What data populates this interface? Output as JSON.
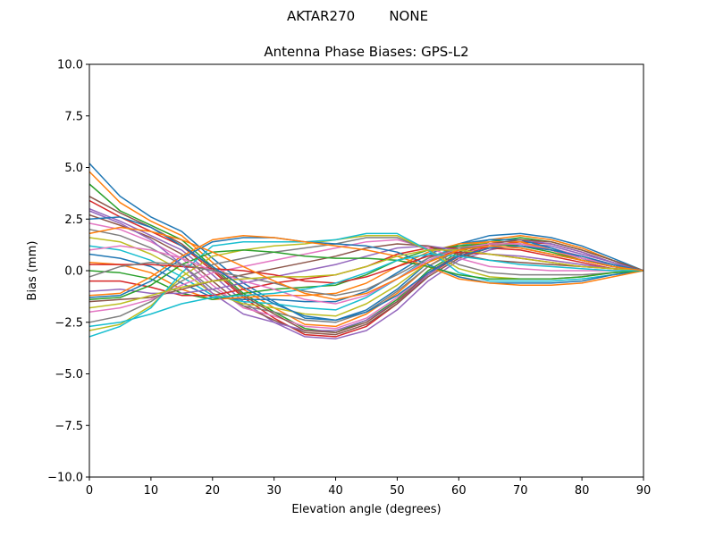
{
  "header": {
    "suptitle": "AKTAR270        NONE"
  },
  "chart_data": {
    "type": "line",
    "title": "Antenna Phase Biases: GPS-L2",
    "xlabel": "Elevation angle (degrees)",
    "ylabel": "Bias (mm)",
    "xlim": [
      0,
      90
    ],
    "ylim": [
      -10,
      10
    ],
    "xticks": [
      0,
      10,
      20,
      30,
      40,
      50,
      60,
      70,
      80,
      90
    ],
    "xtick_labels": [
      "0",
      "10",
      "20",
      "30",
      "40",
      "50",
      "60",
      "70",
      "80",
      "90"
    ],
    "yticks": [
      -10,
      -7.5,
      -5,
      -2.5,
      0,
      2.5,
      5,
      7.5,
      10
    ],
    "ytick_labels": [
      "−10.0",
      "−7.5",
      "−5.0",
      "−2.5",
      "0.0",
      "2.5",
      "5.0",
      "7.5",
      "10.0"
    ],
    "grid": false,
    "legend": "none",
    "colors": [
      "#1f77b4",
      "#ff7f0e",
      "#2ca02c",
      "#d62728",
      "#9467bd",
      "#8c564b",
      "#e377c2",
      "#7f7f7f",
      "#bcbd22",
      "#17becf"
    ],
    "x": [
      0,
      5,
      10,
      15,
      20,
      25,
      30,
      35,
      40,
      45,
      50,
      55,
      60,
      65,
      70,
      75,
      80,
      85,
      90
    ],
    "series": [
      {
        "values": [
          5.2,
          3.6,
          2.6,
          1.9,
          0.6,
          -0.6,
          -1.5,
          -2.3,
          -2.4,
          -1.9,
          -0.9,
          0.4,
          1.3,
          1.7,
          1.8,
          1.6,
          1.2,
          0.6,
          0.0
        ]
      },
      {
        "values": [
          4.8,
          3.3,
          2.4,
          1.7,
          0.4,
          -0.9,
          -1.8,
          -2.6,
          -2.7,
          -2.1,
          -1.1,
          0.2,
          1.1,
          1.5,
          1.7,
          1.5,
          1.1,
          0.5,
          0.0
        ]
      },
      {
        "values": [
          4.2,
          2.9,
          2.2,
          1.5,
          0.2,
          -1.1,
          -2.0,
          -2.8,
          -3.0,
          -2.4,
          -1.4,
          0.0,
          0.9,
          1.4,
          1.6,
          1.4,
          1.0,
          0.5,
          0.0
        ]
      },
      {
        "values": [
          3.4,
          2.6,
          1.9,
          1.2,
          0.0,
          -1.3,
          -2.3,
          -3.1,
          -3.2,
          -2.7,
          -1.6,
          -0.2,
          0.7,
          1.2,
          1.4,
          1.3,
          0.9,
          0.4,
          0.0
        ]
      },
      {
        "values": [
          3.0,
          2.4,
          1.7,
          1.0,
          -0.2,
          -1.5,
          -2.5,
          -3.2,
          -3.3,
          -2.9,
          -1.9,
          -0.5,
          0.5,
          1.0,
          1.3,
          1.2,
          0.8,
          0.4,
          0.0
        ]
      },
      {
        "values": [
          2.7,
          2.2,
          1.6,
          0.8,
          -0.5,
          -1.7,
          -2.4,
          -3.0,
          -3.1,
          -2.6,
          -1.6,
          -0.3,
          0.6,
          1.1,
          1.2,
          1.0,
          0.7,
          0.3,
          0.0
        ]
      },
      {
        "values": [
          2.3,
          2.0,
          1.4,
          0.6,
          -0.7,
          -1.8,
          -2.2,
          -2.7,
          -2.8,
          -2.3,
          -1.3,
          -0.1,
          0.8,
          1.2,
          1.3,
          1.1,
          0.7,
          0.3,
          0.0
        ]
      },
      {
        "values": [
          2.0,
          1.7,
          1.1,
          0.3,
          -0.9,
          -1.7,
          -2.0,
          -2.4,
          -2.5,
          -2.0,
          -1.0,
          0.2,
          1.0,
          1.3,
          1.3,
          1.0,
          0.6,
          0.3,
          0.0
        ]
      },
      {
        "values": [
          1.6,
          1.4,
          0.8,
          0.0,
          -1.1,
          -1.6,
          -1.8,
          -2.1,
          -2.2,
          -1.6,
          -0.7,
          0.4,
          1.1,
          1.4,
          1.4,
          1.0,
          0.6,
          0.2,
          0.0
        ]
      },
      {
        "values": [
          1.2,
          1.0,
          0.5,
          -0.3,
          -1.2,
          -1.5,
          -1.6,
          -1.8,
          -1.9,
          -1.3,
          -0.4,
          0.6,
          1.2,
          1.5,
          1.5,
          1.1,
          0.6,
          0.2,
          0.0
        ]
      },
      {
        "values": [
          0.8,
          0.6,
          0.2,
          -0.6,
          -1.3,
          -1.4,
          -1.4,
          -1.5,
          -1.5,
          -1.0,
          -0.1,
          0.8,
          1.3,
          1.5,
          1.5,
          1.1,
          0.6,
          0.2,
          0.0
        ]
      },
      {
        "values": [
          0.4,
          0.3,
          -0.1,
          -0.9,
          -1.4,
          -1.3,
          -1.2,
          -1.2,
          -1.1,
          -0.6,
          0.2,
          0.9,
          1.3,
          1.4,
          1.4,
          1.0,
          0.5,
          0.2,
          0.0
        ]
      },
      {
        "values": [
          0.0,
          -0.1,
          -0.4,
          -1.1,
          -1.4,
          -1.1,
          -0.9,
          -0.8,
          -0.7,
          -0.2,
          0.5,
          1.0,
          1.2,
          1.3,
          1.2,
          0.9,
          0.5,
          0.2,
          0.0
        ]
      },
      {
        "values": [
          -0.5,
          -0.5,
          -0.8,
          -1.2,
          -1.2,
          -0.9,
          -0.6,
          -0.4,
          -0.2,
          0.2,
          0.8,
          1.1,
          1.1,
          1.1,
          1.0,
          0.7,
          0.4,
          0.1,
          0.0
        ]
      },
      {
        "values": [
          -1.0,
          -0.9,
          -1.1,
          -1.1,
          -0.9,
          -0.6,
          -0.3,
          0.0,
          0.3,
          0.7,
          1.1,
          1.2,
          1.0,
          0.8,
          0.7,
          0.5,
          0.3,
          0.1,
          0.0
        ]
      },
      {
        "values": [
          -1.5,
          -1.4,
          -1.3,
          -0.9,
          -0.5,
          -0.2,
          0.1,
          0.4,
          0.7,
          1.1,
          1.3,
          1.2,
          0.8,
          0.5,
          0.4,
          0.3,
          0.2,
          0.1,
          0.0
        ]
      },
      {
        "values": [
          -2.0,
          -1.8,
          -1.4,
          -0.7,
          -0.1,
          0.2,
          0.5,
          0.8,
          1.1,
          1.4,
          1.5,
          1.1,
          0.6,
          0.2,
          0.1,
          0.0,
          0.0,
          0.0,
          0.0
        ]
      },
      {
        "values": [
          -2.5,
          -2.2,
          -1.5,
          -0.5,
          0.3,
          0.6,
          0.9,
          1.1,
          1.3,
          1.6,
          1.6,
          1.0,
          0.3,
          -0.1,
          -0.2,
          -0.2,
          -0.2,
          -0.1,
          0.0
        ]
      },
      {
        "values": [
          -2.9,
          -2.6,
          -1.7,
          -0.3,
          0.7,
          1.0,
          1.2,
          1.3,
          1.5,
          1.7,
          1.7,
          1.0,
          0.1,
          -0.3,
          -0.4,
          -0.4,
          -0.3,
          -0.1,
          0.0
        ]
      },
      {
        "values": [
          -3.2,
          -2.7,
          -1.8,
          -0.1,
          1.2,
          1.4,
          1.4,
          1.4,
          1.5,
          1.8,
          1.8,
          1.0,
          -0.1,
          -0.5,
          -0.5,
          -0.5,
          -0.4,
          -0.2,
          0.0
        ]
      },
      {
        "values": [
          -1.3,
          -1.2,
          -0.5,
          0.6,
          1.4,
          1.6,
          1.6,
          1.4,
          1.3,
          1.2,
          0.9,
          0.3,
          -0.3,
          -0.6,
          -0.6,
          -0.6,
          -0.5,
          -0.2,
          0.0
        ]
      },
      {
        "values": [
          -1.2,
          -1.1,
          -0.3,
          0.7,
          1.5,
          1.7,
          1.6,
          1.4,
          1.2,
          1.0,
          0.7,
          0.2,
          -0.4,
          -0.6,
          -0.7,
          -0.7,
          -0.6,
          -0.3,
          0.0
        ]
      },
      {
        "values": [
          -1.4,
          -1.3,
          -0.7,
          0.3,
          0.9,
          1.0,
          0.9,
          0.7,
          0.6,
          0.6,
          0.5,
          0.2,
          -0.2,
          -0.4,
          -0.4,
          -0.4,
          -0.3,
          -0.1,
          0.0
        ]
      },
      {
        "values": [
          0.3,
          0.3,
          0.3,
          0.2,
          0.1,
          0.0,
          -0.2,
          -0.5,
          -0.6,
          -0.3,
          0.2,
          0.7,
          0.9,
          0.8,
          0.6,
          0.4,
          0.2,
          0.1,
          0.0
        ]
      },
      {
        "values": [
          2.9,
          2.3,
          1.5,
          0.3,
          -1.1,
          -2.1,
          -2.5,
          -2.9,
          -2.9,
          -2.4,
          -1.5,
          -0.2,
          0.8,
          1.3,
          1.5,
          1.3,
          0.9,
          0.4,
          0.0
        ]
      },
      {
        "values": [
          3.6,
          2.8,
          2.1,
          1.3,
          0.1,
          -1.2,
          -2.1,
          -2.9,
          -3.0,
          -2.5,
          -1.5,
          -0.1,
          0.8,
          1.3,
          1.5,
          1.4,
          1.0,
          0.5,
          0.0
        ]
      },
      {
        "values": [
          1.0,
          1.2,
          1.0,
          0.6,
          0.0,
          -0.5,
          -0.9,
          -1.4,
          -1.6,
          -1.2,
          -0.4,
          0.5,
          1.1,
          1.3,
          1.3,
          1.0,
          0.6,
          0.3,
          0.0
        ]
      },
      {
        "values": [
          -0.3,
          0.2,
          0.4,
          0.3,
          0.0,
          -0.3,
          -0.6,
          -1.0,
          -1.2,
          -0.9,
          -0.2,
          0.6,
          1.1,
          1.2,
          1.1,
          0.8,
          0.5,
          0.2,
          0.0
        ]
      },
      {
        "values": [
          -1.8,
          -1.6,
          -1.2,
          -0.8,
          -0.5,
          -0.4,
          -0.3,
          -0.3,
          -0.2,
          0.2,
          0.7,
          1.0,
          1.0,
          0.8,
          0.6,
          0.4,
          0.2,
          0.1,
          0.0
        ]
      },
      {
        "values": [
          -2.7,
          -2.5,
          -2.1,
          -1.6,
          -1.3,
          -1.2,
          -1.1,
          -0.9,
          -0.6,
          -0.1,
          0.5,
          0.8,
          0.7,
          0.5,
          0.3,
          0.2,
          0.1,
          0.0,
          0.0
        ]
      },
      {
        "values": [
          2.5,
          2.6,
          2.1,
          1.2,
          0.2,
          -0.8,
          -1.6,
          -2.2,
          -2.4,
          -2.0,
          -1.2,
          -0.1,
          0.7,
          1.1,
          1.2,
          1.0,
          0.7,
          0.3,
          0.0
        ]
      },
      {
        "values": [
          1.8,
          2.1,
          1.9,
          1.5,
          0.9,
          0.2,
          -0.5,
          -1.1,
          -1.4,
          -1.1,
          -0.4,
          0.4,
          1.0,
          1.2,
          1.1,
          0.8,
          0.5,
          0.2,
          0.0
        ]
      }
    ]
  }
}
